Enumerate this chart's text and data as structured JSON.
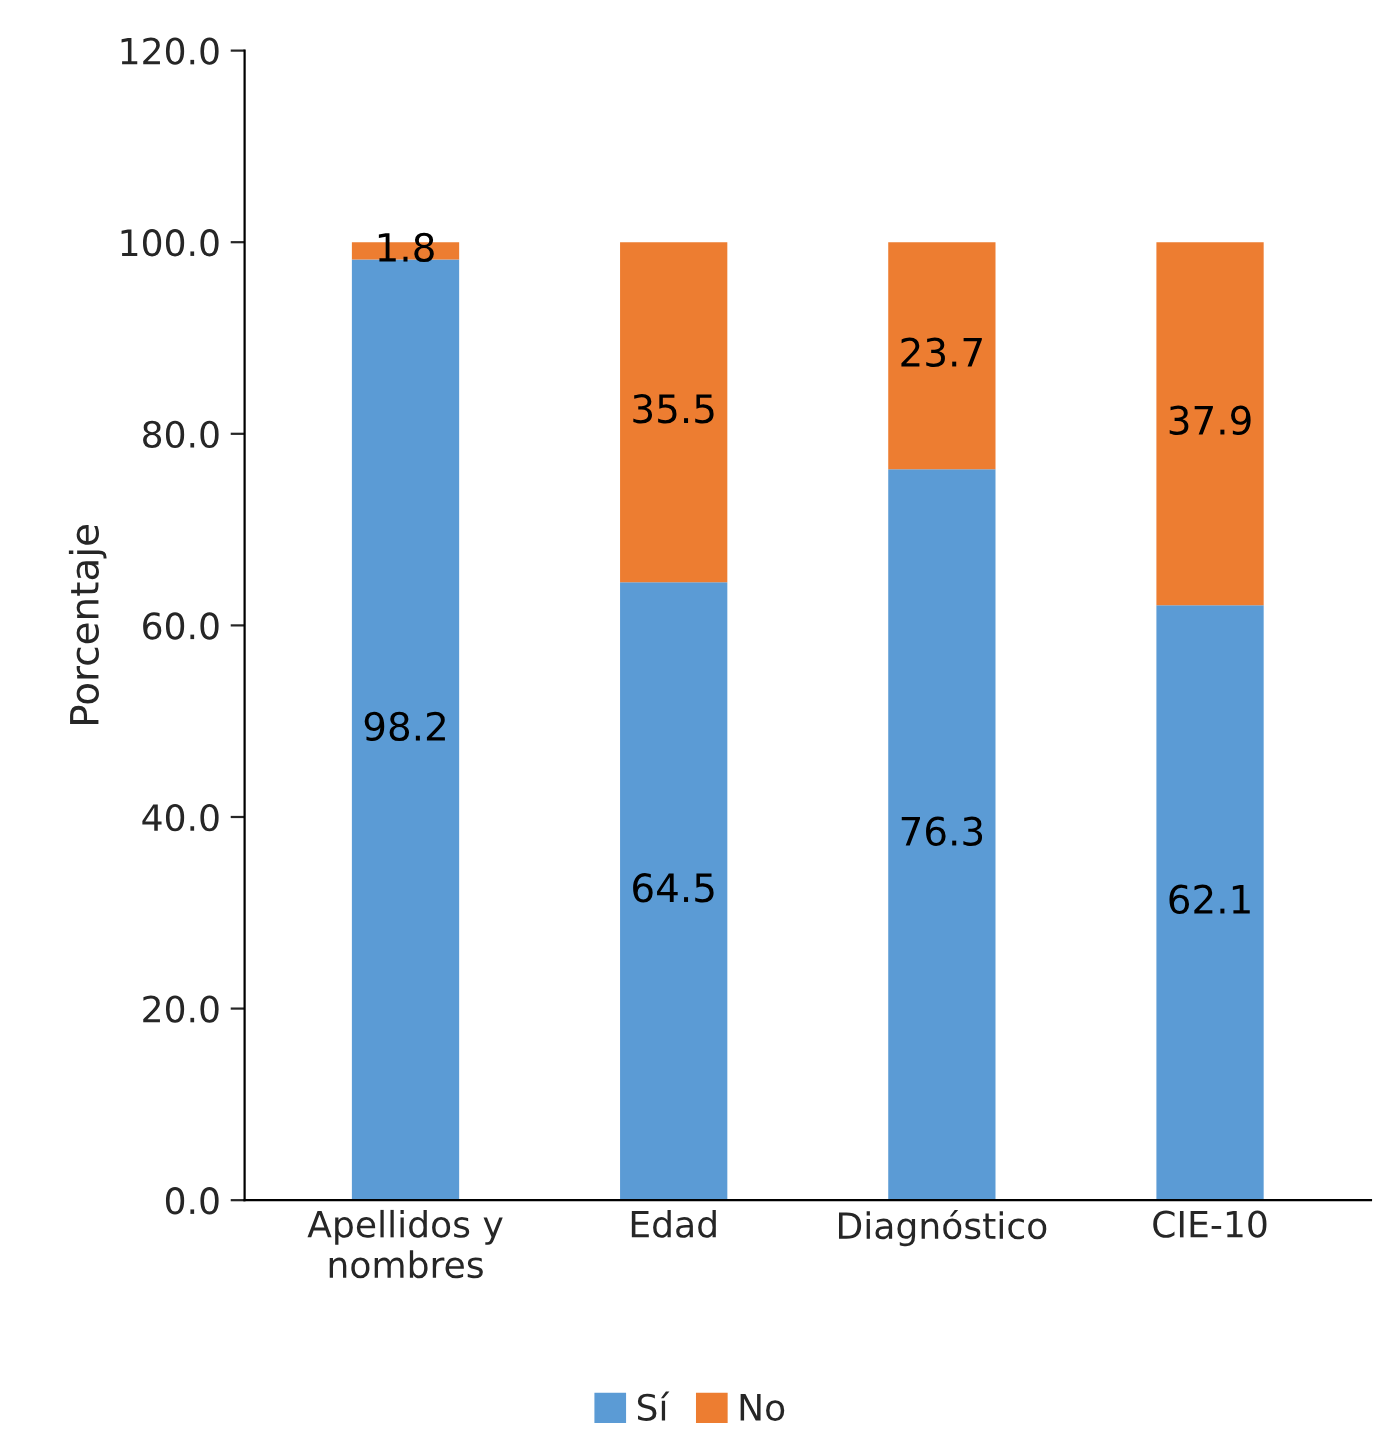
{
  "chart_data": {
    "type": "bar",
    "stacked": true,
    "ylabel": "Porcentaje",
    "categories": [
      "Apellidos y\nnombres",
      "Edad",
      "Diagnóstico",
      "CIE-10"
    ],
    "series": [
      {
        "name": "Sí",
        "color": "#5b9bd5",
        "values": [
          98.2,
          64.5,
          76.3,
          62.1
        ]
      },
      {
        "name": "No",
        "color": "#ed7d31",
        "values": [
          1.8,
          35.5,
          23.7,
          37.9
        ]
      }
    ],
    "ylim": [
      0,
      120
    ],
    "yticks": [
      {
        "value": 0,
        "label": "0.0"
      },
      {
        "value": 20,
        "label": "20.0"
      },
      {
        "value": 40,
        "label": "40.0"
      },
      {
        "value": 60,
        "label": "60.0"
      },
      {
        "value": 80,
        "label": "80.0"
      },
      {
        "value": 100,
        "label": "100.0"
      },
      {
        "value": 120,
        "label": "120.0"
      }
    ],
    "data_labels": true,
    "legend": "bottom",
    "grid": false
  }
}
